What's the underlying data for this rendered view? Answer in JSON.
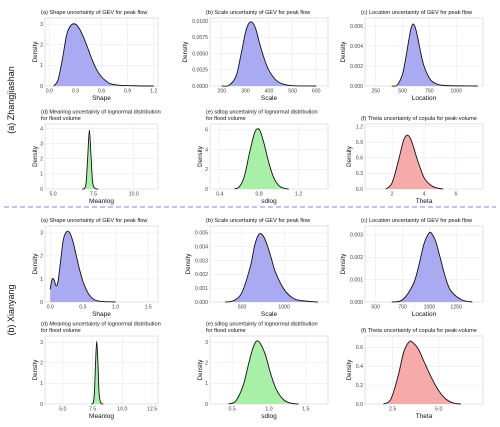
{
  "figure": {
    "section_labels": [
      "(a) Zhangjiashan",
      "(b) Xianyang"
    ],
    "separator_color": "#8a84d8",
    "colors": {
      "blue": "#aaaaf2",
      "green": "#a8f0a8",
      "red": "#f6aaaa",
      "line": "#111111",
      "grid": "#e6e6e6"
    }
  },
  "chart_data": [
    {
      "type": "area",
      "title": "(a) Shape uncertainty of GEV for peak flow",
      "xlabel": "Shape",
      "ylabel": "Density",
      "xlim": [
        -0.05,
        1.25
      ],
      "ylim": [
        0,
        3.3
      ],
      "xticks": [
        0.0,
        0.3,
        0.6,
        0.9,
        1.2
      ],
      "xtick_labels": [
        "0.0",
        "0.3",
        "0.6",
        "0.9",
        "1.2"
      ],
      "yticks": [
        0,
        1,
        2,
        3
      ],
      "ytick_labels": [
        "0",
        "1",
        "2",
        "3"
      ],
      "fill": "blue",
      "x": [
        0.05,
        0.1,
        0.15,
        0.2,
        0.25,
        0.3,
        0.35,
        0.4,
        0.45,
        0.5,
        0.55,
        0.6,
        0.65,
        0.7,
        0.8,
        0.9,
        1.0,
        1.1,
        1.2
      ],
      "y": [
        0.0,
        0.3,
        1.3,
        2.5,
        2.95,
        3.0,
        2.75,
        2.3,
        1.75,
        1.2,
        0.75,
        0.45,
        0.25,
        0.12,
        0.04,
        0.02,
        0.01,
        0.0,
        0.0
      ]
    },
    {
      "type": "area",
      "title": "(b) Scale uncertainty of GEV for peak flow",
      "xlabel": "Scale",
      "ylabel": "Density",
      "xlim": [
        150,
        650
      ],
      "ylim": [
        0,
        0.0105
      ],
      "xticks": [
        200,
        300,
        400,
        500,
        600
      ],
      "xtick_labels": [
        "200",
        "300",
        "400",
        "500",
        "600"
      ],
      "yticks": [
        0,
        0.0025,
        0.005,
        0.0075,
        0.01
      ],
      "ytick_labels": [
        "0.0000",
        "0.0025",
        "0.0050",
        "0.0075",
        "0.0100"
      ],
      "fill": "blue",
      "x": [
        200,
        230,
        260,
        280,
        300,
        315,
        330,
        345,
        360,
        380,
        400,
        430,
        460,
        500,
        600
      ],
      "y": [
        0.0,
        0.0001,
        0.0015,
        0.0046,
        0.0082,
        0.0097,
        0.0098,
        0.0087,
        0.0066,
        0.0042,
        0.0024,
        0.0009,
        0.0003,
        5e-05,
        0.0
      ]
    },
    {
      "type": "area",
      "title": "(c) Location uncertainty of GEV for peak flow",
      "xlabel": "Location",
      "ylabel": "Density",
      "xlim": [
        150,
        1250
      ],
      "ylim": [
        0,
        0.0068
      ],
      "xticks": [
        250,
        500,
        750,
        1000
      ],
      "xtick_labels": [
        "250",
        "500",
        "750",
        "1000"
      ],
      "yticks": [
        0,
        0.002,
        0.004,
        0.006
      ],
      "ytick_labels": [
        "0.000",
        "0.002",
        "0.004",
        "0.006"
      ],
      "fill": "blue",
      "x": [
        400,
        450,
        500,
        530,
        560,
        580,
        600,
        620,
        640,
        670,
        700,
        750,
        800,
        900,
        1200
      ],
      "y": [
        0.0,
        0.0001,
        0.0012,
        0.0028,
        0.0047,
        0.0058,
        0.0062,
        0.0058,
        0.0049,
        0.0033,
        0.002,
        0.0008,
        0.0003,
        5e-05,
        0.0
      ]
    },
    {
      "type": "area",
      "title": "(d) Meanlog uncertainty of lognormal distribution\nfor flood volume",
      "xlabel": "Meanlog",
      "ylabel": "Density",
      "xlim": [
        4.5,
        11.5
      ],
      "ylim": [
        0,
        4.3
      ],
      "xticks": [
        5.0,
        7.5,
        10.0
      ],
      "xtick_labels": [
        "5.0",
        "7.5",
        "10.0"
      ],
      "yticks": [
        0,
        1,
        2,
        3,
        4
      ],
      "ytick_labels": [
        "0",
        "1",
        "2",
        "3",
        "4"
      ],
      "fill": "green",
      "x": [
        6.8,
        6.95,
        7.05,
        7.15,
        7.25,
        7.35,
        7.45,
        7.6,
        7.8
      ],
      "y": [
        0.0,
        0.05,
        0.45,
        2.2,
        3.9,
        2.2,
        0.45,
        0.05,
        0.0
      ]
    },
    {
      "type": "area",
      "title": "(e) sdlog uncertainty of lognormal distribution\nfor flood volume",
      "xlabel": "sdlog",
      "ylabel": "Density",
      "xlim": [
        0.3,
        1.5
      ],
      "ylim": [
        0,
        6.6
      ],
      "xticks": [
        0.4,
        0.8,
        1.2
      ],
      "xtick_labels": [
        "0.4",
        "0.8",
        "1.2"
      ],
      "yticks": [
        0,
        2,
        4,
        6
      ],
      "ytick_labels": [
        "0",
        "2",
        "4",
        "6"
      ],
      "fill": "green",
      "x": [
        0.55,
        0.6,
        0.65,
        0.7,
        0.75,
        0.78,
        0.81,
        0.85,
        0.9,
        0.95,
        1.0,
        1.05,
        1.1
      ],
      "y": [
        0.0,
        0.25,
        1.3,
        3.6,
        5.6,
        6.1,
        5.9,
        4.6,
        2.6,
        1.1,
        0.35,
        0.08,
        0.0
      ]
    },
    {
      "type": "area",
      "title": "(f) Theta uncertainty of copula for peak-volume",
      "xlabel": "Theta",
      "ylabel": "Density",
      "xlim": [
        0.3,
        7.7
      ],
      "ylim": [
        0,
        1.25
      ],
      "xticks": [
        2,
        4,
        6
      ],
      "xtick_labels": [
        "2",
        "4",
        "6"
      ],
      "yticks": [
        0,
        0.3,
        0.6,
        0.9,
        1.2
      ],
      "ytick_labels": [
        "0.0",
        "0.3",
        "0.6",
        "0.9",
        "1.2"
      ],
      "fill": "red",
      "x": [
        1.6,
        2.0,
        2.4,
        2.7,
        2.9,
        3.1,
        3.3,
        3.6,
        4.0,
        4.4,
        4.8,
        5.2
      ],
      "y": [
        0.0,
        0.12,
        0.55,
        0.92,
        1.03,
        1.0,
        0.85,
        0.55,
        0.22,
        0.08,
        0.02,
        0.0
      ]
    },
    {
      "type": "area",
      "title": "(a) Shape uncertainty of GEV for peak flow",
      "xlabel": "Shape",
      "ylabel": "Density",
      "xlim": [
        -0.08,
        1.65
      ],
      "ylim": [
        0,
        3.3
      ],
      "xticks": [
        0.0,
        0.5,
        1.0,
        1.5
      ],
      "xtick_labels": [
        "0.0",
        "0.5",
        "1.0",
        "1.5"
      ],
      "yticks": [
        0,
        1,
        2,
        3
      ],
      "ytick_labels": [
        "0",
        "1",
        "2",
        "3"
      ],
      "fill": "blue",
      "x": [
        0.0,
        0.03,
        0.06,
        0.09,
        0.12,
        0.16,
        0.2,
        0.25,
        0.3,
        0.35,
        0.4,
        0.45,
        0.5,
        0.55,
        0.6,
        0.65,
        0.7,
        0.8,
        0.9,
        1.0
      ],
      "y": [
        0.55,
        1.0,
        0.95,
        0.7,
        0.9,
        1.8,
        2.7,
        3.05,
        3.0,
        2.6,
        2.0,
        1.4,
        0.9,
        0.55,
        0.3,
        0.15,
        0.07,
        0.02,
        0.01,
        0.0
      ]
    },
    {
      "type": "area",
      "title": "(b) Scale uncertainty of GEV for peak flow",
      "xlabel": "Scale",
      "ylabel": "Density",
      "xlim": [
        120,
        1520
      ],
      "ylim": [
        0,
        0.0055
      ],
      "xticks": [
        500,
        1000
      ],
      "xtick_labels": [
        "500",
        "1000"
      ],
      "yticks": [
        0,
        0.001,
        0.002,
        0.003,
        0.004,
        0.005
      ],
      "ytick_labels": [
        "0.000",
        "0.001",
        "0.002",
        "0.003",
        "0.004",
        "0.005"
      ],
      "fill": "blue",
      "x": [
        300,
        400,
        500,
        600,
        650,
        700,
        750,
        800,
        850,
        900,
        1000,
        1100,
        1200,
        1400
      ],
      "y": [
        0.0,
        0.0001,
        0.0007,
        0.0026,
        0.0041,
        0.0049,
        0.0048,
        0.0041,
        0.0031,
        0.0021,
        0.0009,
        0.0003,
        0.0001,
        0.0
      ]
    },
    {
      "type": "area",
      "title": "(c) Location uncertainty of GEV for peak flow",
      "xlabel": "Location",
      "ylabel": "Density",
      "xlim": [
        400,
        1500
      ],
      "ylim": [
        0,
        0.0034
      ],
      "xticks": [
        500,
        750,
        1000,
        1250
      ],
      "xtick_labels": [
        "500",
        "750",
        "1000",
        "1250"
      ],
      "yticks": [
        0,
        0.001,
        0.002,
        0.003
      ],
      "ytick_labels": [
        "0.000",
        "0.001",
        "0.002",
        "0.003"
      ],
      "fill": "blue",
      "x": [
        650,
        750,
        850,
        900,
        950,
        1000,
        1030,
        1060,
        1100,
        1150,
        1200,
        1300,
        1400
      ],
      "y": [
        0.0,
        0.0001,
        0.0008,
        0.0016,
        0.0026,
        0.0031,
        0.003,
        0.0027,
        0.002,
        0.0011,
        0.0005,
        0.0001,
        0.0
      ]
    },
    {
      "type": "area",
      "title": "(d) Meanlog uncertainty of lognormal distribution\nfor flood volume",
      "xlabel": "Meanlog",
      "ylabel": "Density",
      "xlim": [
        3.5,
        13.0
      ],
      "ylim": [
        0,
        3.3
      ],
      "xticks": [
        5.0,
        7.5,
        10.0,
        12.5
      ],
      "xtick_labels": [
        "5.0",
        "7.5",
        "10.0",
        "12.5"
      ],
      "yticks": [
        0,
        1,
        2,
        3
      ],
      "ytick_labels": [
        "0",
        "1",
        "2",
        "3"
      ],
      "fill": "green",
      "x": [
        7.4,
        7.55,
        7.65,
        7.75,
        7.85,
        7.95,
        8.05,
        8.2,
        8.4
      ],
      "y": [
        0.0,
        0.05,
        0.5,
        2.0,
        3.05,
        2.0,
        0.5,
        0.05,
        0.0
      ]
    },
    {
      "type": "area",
      "title": "(e) sdlog uncertainty of lognormal distribution\nfor flood volume",
      "xlabel": "sdlog",
      "ylabel": "Density",
      "xlim": [
        0.2,
        1.8
      ],
      "ylim": [
        0,
        3.3
      ],
      "xticks": [
        0.5,
        1.0,
        1.5
      ],
      "xtick_labels": [
        "0.5",
        "1.0",
        "1.5"
      ],
      "yticks": [
        0,
        1,
        2,
        3
      ],
      "ytick_labels": [
        "0",
        "1",
        "2",
        "3"
      ],
      "fill": "green",
      "x": [
        0.45,
        0.55,
        0.65,
        0.72,
        0.78,
        0.83,
        0.88,
        0.95,
        1.02,
        1.1,
        1.2,
        1.3,
        1.4
      ],
      "y": [
        0.0,
        0.15,
        0.9,
        1.9,
        2.7,
        3.05,
        2.95,
        2.4,
        1.5,
        0.7,
        0.2,
        0.04,
        0.0
      ]
    },
    {
      "type": "area",
      "title": "(f) Theta uncertainty of copula for peak-volume",
      "xlabel": "Theta",
      "ylabel": "Density",
      "xlim": [
        1.0,
        7.4
      ],
      "ylim": [
        0,
        0.72
      ],
      "xticks": [
        2.5,
        5.0
      ],
      "xtick_labels": [
        "2.5",
        "5.0"
      ],
      "yticks": [
        0,
        0.2,
        0.4,
        0.6
      ],
      "ytick_labels": [
        "0.0",
        "0.2",
        "0.4",
        "0.6"
      ],
      "fill": "red",
      "x": [
        2.0,
        2.4,
        2.8,
        3.1,
        3.4,
        3.6,
        3.9,
        4.2,
        4.6,
        5.0,
        5.4,
        5.8,
        6.2
      ],
      "y": [
        0.0,
        0.05,
        0.3,
        0.55,
        0.66,
        0.65,
        0.58,
        0.45,
        0.28,
        0.14,
        0.05,
        0.01,
        0.0
      ]
    }
  ]
}
